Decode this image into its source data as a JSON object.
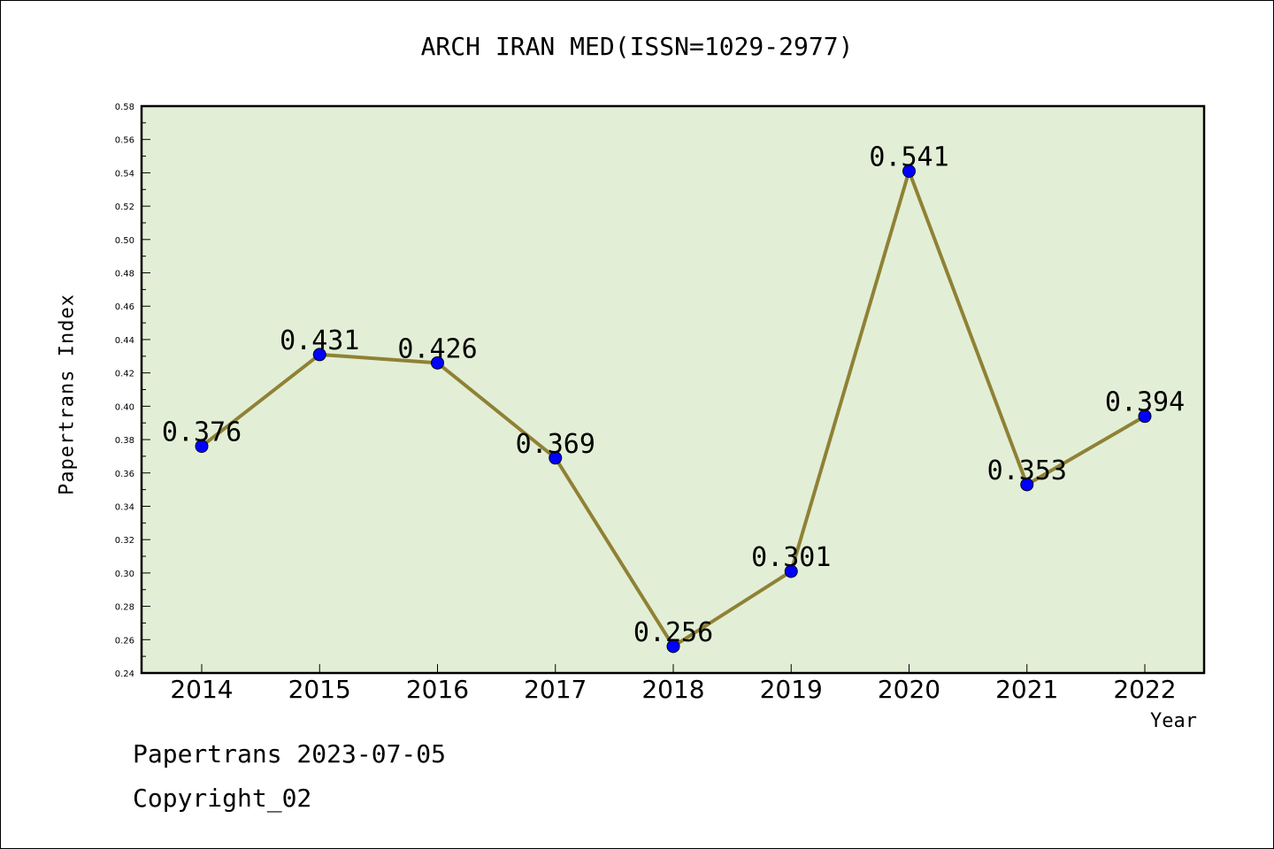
{
  "chart_data": {
    "type": "line",
    "title": "ARCH IRAN MED(ISSN=1029-2977)",
    "xlabel": "Year",
    "ylabel": "Papertrans Index",
    "categories": [
      "2014",
      "2015",
      "2016",
      "2017",
      "2018",
      "2019",
      "2020",
      "2021",
      "2022"
    ],
    "series": [
      {
        "values": [
          0.376,
          0.431,
          0.426,
          0.369,
          0.256,
          0.301,
          0.541,
          0.353,
          0.394
        ],
        "labels": [
          "0.376",
          "0.431",
          "0.426",
          "0.369",
          "0.256",
          "0.301",
          "0.541",
          "0.353",
          "0.394"
        ]
      }
    ],
    "ylim": [
      0.24,
      0.58
    ],
    "yticks": [
      "0.24",
      "0.26",
      "0.28",
      "0.30",
      "0.32",
      "0.34",
      "0.36",
      "0.38",
      "0.40",
      "0.42",
      "0.44",
      "0.46",
      "0.48",
      "0.50",
      "0.52",
      "0.54",
      "0.56",
      "0.58"
    ],
    "grid": false,
    "legend": "none"
  },
  "footer": {
    "date_line": "Papertrans 2023-07-05",
    "copyright": "Copyright_02"
  },
  "colors": {
    "plot_background": "#e2efd6",
    "line": "#8f8135",
    "marker": "#0000ff"
  }
}
